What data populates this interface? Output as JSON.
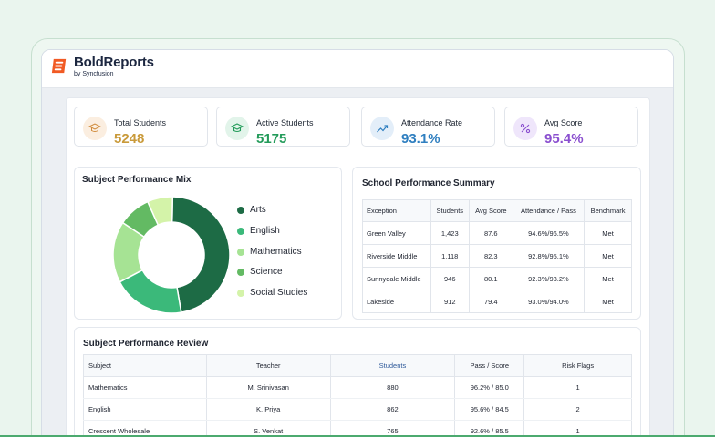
{
  "brand": {
    "name": "BoldReports",
    "sub": "by Syncfusion"
  },
  "kpis": [
    {
      "label": "Total Students",
      "value": "5248",
      "color": "#c99a3a",
      "icon": "graduation-scroll-icon",
      "icon_bg": "#fbeee0"
    },
    {
      "label": "Active Students",
      "value": "5175",
      "color": "#239b5a",
      "icon": "graduation-cap-icon",
      "icon_bg": "#e2f4ea"
    },
    {
      "label": "Attendance Rate",
      "value": "93.1%",
      "color": "#2f7fc0",
      "icon": "trend-up-icon",
      "icon_bg": "#e3eef9"
    },
    {
      "label": "Avg Score",
      "value": "95.4%",
      "color": "#8a4fcf",
      "icon": "percent-icon",
      "icon_bg": "#efe6fb"
    }
  ],
  "subject_mix": {
    "title": "Subject Performance Mix",
    "legend": [
      {
        "label": "Arts",
        "color": "#1d6b45"
      },
      {
        "label": "English",
        "color": "#3bb97a"
      },
      {
        "label": "Mathematics",
        "color": "#a6e394"
      },
      {
        "label": "Science",
        "color": "#63ba63"
      },
      {
        "label": "Social Studies",
        "color": "#d4f3a9"
      }
    ]
  },
  "chart_data": {
    "type": "pie",
    "categories": [
      "Arts",
      "English",
      "Mathematics",
      "Science",
      "Social Studies"
    ],
    "values": [
      47,
      20,
      17,
      9,
      7
    ],
    "colors": [
      "#1d6b45",
      "#3bb97a",
      "#a6e394",
      "#63ba63",
      "#d4f3a9"
    ],
    "title": "Subject Performance Mix",
    "donut": true,
    "legend": "right"
  },
  "summary": {
    "title": "School Performance Summary",
    "columns": [
      "Exception",
      "Students",
      "Avg Score",
      "Attendance / Pass",
      "Benchmark"
    ],
    "rows": [
      [
        "Green Valley",
        "1,423",
        "87.6",
        "94.6%/96.5%",
        "Met"
      ],
      [
        "Riverside Middle",
        "1,118",
        "82.3",
        "92.8%/95.1%",
        "Met"
      ],
      [
        "Sunnydale Middle",
        "946",
        "80.1",
        "92.3%/93.2%",
        "Met"
      ],
      [
        "Lakeside",
        "912",
        "79.4",
        "93.0%/94.0%",
        "Met"
      ]
    ]
  },
  "review": {
    "title": "Subject Performance Review",
    "columns": [
      "Subject",
      "Teacher",
      "Students",
      "Pass / Score",
      "Risk Flags"
    ],
    "rows": [
      [
        "Mathematics",
        "M. Srinivasan",
        "880",
        "96.2% / 85.0",
        "1"
      ],
      [
        "English",
        "K. Priya",
        "862",
        "95.6% / 84.5",
        "2"
      ],
      [
        "Crescent Wholesale",
        "S. Venkat",
        "765",
        "92.6% / 85.5",
        "1"
      ]
    ]
  }
}
